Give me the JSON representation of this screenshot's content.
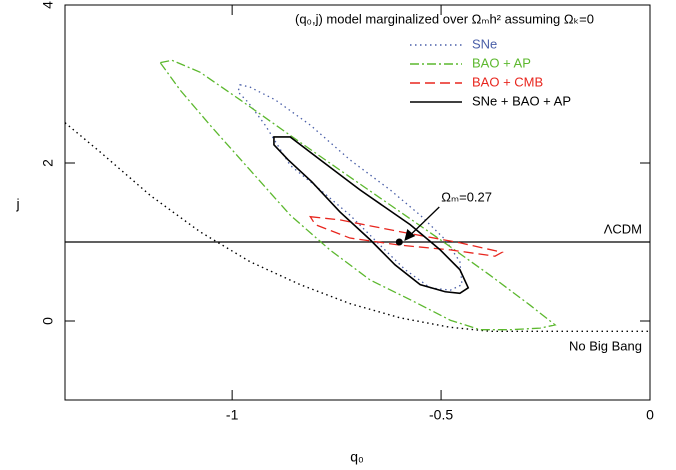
{
  "chart_data": {
    "type": "contour",
    "title": "(q₀,j) model marginalized over Ωₘh² assuming Ωₖ=0",
    "x_label": "q₀",
    "y_label": "j",
    "xlim": [
      -1.4,
      0
    ],
    "ylim": [
      -1,
      4
    ],
    "xticks": [
      -1,
      -0.5,
      0
    ],
    "yticks": [
      0,
      2,
      4
    ],
    "grid": false,
    "legend": "upper right",
    "series": [
      {
        "name": "SNe",
        "color": "#4a5fa8",
        "linestyle": "dotted",
        "x": [
          -0.981,
          -0.957,
          -0.897,
          -0.813,
          -0.718,
          -0.622,
          -0.55,
          -0.49,
          -0.455,
          -0.45,
          -0.478,
          -0.526,
          -0.586,
          -0.646,
          -0.718,
          -0.789,
          -0.861,
          -0.921,
          -0.962,
          -0.986
        ],
        "values": [
          2.99,
          2.96,
          2.8,
          2.48,
          2.04,
          1.66,
          1.34,
          1.03,
          0.75,
          0.46,
          0.39,
          0.42,
          0.65,
          0.96,
          1.34,
          1.66,
          1.97,
          2.48,
          2.77,
          2.9
        ]
      },
      {
        "name": "BAO + AP",
        "color": "#5cb82e",
        "linestyle": "dashdot",
        "x": [
          -1.172,
          -1.144,
          -1.077,
          -0.981,
          -0.861,
          -0.742,
          -0.622,
          -0.502,
          -0.383,
          -0.287,
          -0.227,
          -0.263,
          -0.335,
          -0.407,
          -0.478,
          -0.574,
          -0.67,
          -0.766,
          -0.861,
          -0.957,
          -1.053,
          -1.124
        ],
        "values": [
          3.27,
          3.3,
          3.15,
          2.8,
          2.35,
          1.91,
          1.47,
          1.03,
          0.58,
          0.2,
          -0.05,
          -0.09,
          -0.11,
          -0.11,
          0.01,
          0.27,
          0.52,
          0.9,
          1.34,
          1.91,
          2.48,
          2.92
        ]
      },
      {
        "name": "BAO + CMB",
        "color": "#e8261e",
        "linestyle": "dashed",
        "x": [
          -0.813,
          -0.742,
          -0.598,
          -0.455,
          -0.354,
          -0.371,
          -0.478,
          -0.598,
          -0.718,
          -0.801
        ],
        "values": [
          1.32,
          1.28,
          1.13,
          0.99,
          0.87,
          0.82,
          0.9,
          0.96,
          1.05,
          1.22
        ]
      },
      {
        "name": "SNe + BAO + AP",
        "color": "#000000",
        "linestyle": "solid",
        "x": [
          -0.9,
          -0.861,
          -0.789,
          -0.694,
          -0.574,
          -0.502,
          -0.455,
          -0.435,
          -0.455,
          -0.49,
          -0.55,
          -0.61,
          -0.67,
          -0.742,
          -0.809,
          -0.866,
          -0.9
        ],
        "values": [
          2.33,
          2.33,
          2.04,
          1.66,
          1.22,
          0.9,
          0.65,
          0.42,
          0.35,
          0.37,
          0.46,
          0.71,
          1.03,
          1.38,
          1.76,
          2.04,
          2.23
        ]
      }
    ],
    "reference_line": {
      "y": 1,
      "label": "ΛCDM"
    },
    "boundary": {
      "label": "No Big Bang",
      "color": "#000000",
      "linestyle": "dotted",
      "x": [
        -1.4,
        -1.316,
        -1.196,
        -1.077,
        -0.957,
        -0.837,
        -0.718,
        -0.598,
        -0.478,
        -0.383,
        0
      ],
      "values": [
        2.51,
        2.14,
        1.59,
        1.13,
        0.75,
        0.46,
        0.22,
        0.04,
        -0.08,
        -0.13,
        -0.13
      ]
    },
    "point": {
      "x": -0.6,
      "y": 1,
      "label": "Ωₘ=0.27"
    }
  }
}
